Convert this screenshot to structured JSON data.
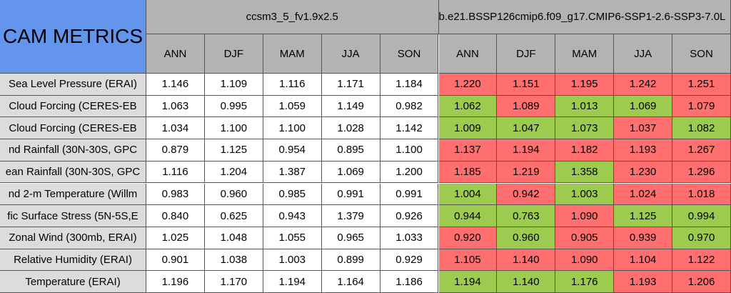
{
  "header": {
    "title": "CAM METRICS",
    "groups": [
      "ccsm3_5_fv1.9x2.5",
      "b.e21.BSSP126cmip6.f09_g17.CMIP6-SSP1-2.6-SSP3-7.0L"
    ],
    "columns": [
      "ANN",
      "DJF",
      "MAM",
      "JJA",
      "SON",
      "ANN",
      "DJF",
      "MAM",
      "JJA",
      "SON"
    ]
  },
  "table": {
    "rows": [
      {
        "label": "Sea Level Pressure (ERAI)",
        "cells": [
          "1.146",
          "1.109",
          "1.116",
          "1.171",
          "1.184",
          "1.220",
          "1.151",
          "1.195",
          "1.242",
          "1.251"
        ],
        "highlight": [
          "#ff6f6f",
          "#ff6f6f",
          "#ff6f6f",
          "#ff6f6f",
          "#ff6f6f"
        ]
      },
      {
        "label": "Cloud Forcing (CERES-EB",
        "cells": [
          "1.063",
          "0.995",
          "1.059",
          "1.149",
          "0.982",
          "1.062",
          "1.089",
          "1.013",
          "1.069",
          "1.079"
        ],
        "highlight": [
          "#9ccb50",
          "#ff6f6f",
          "#9ccb50",
          "#9ccb50",
          "#ff6f6f"
        ]
      },
      {
        "label": "Cloud Forcing (CERES-EB",
        "cells": [
          "1.034",
          "1.100",
          "1.100",
          "1.028",
          "1.142",
          "1.009",
          "1.047",
          "1.073",
          "1.037",
          "1.082"
        ],
        "highlight": [
          "#9ccb50",
          "#9ccb50",
          "#9ccb50",
          "#ff6f6f",
          "#9ccb50"
        ]
      },
      {
        "label": "nd Rainfall (30N-30S, GPC",
        "cells": [
          "0.879",
          "1.125",
          "0.954",
          "0.895",
          "1.100",
          "1.137",
          "1.194",
          "1.182",
          "1.193",
          "1.267"
        ],
        "highlight": [
          "#ff6f6f",
          "#ff6f6f",
          "#ff6f6f",
          "#ff6f6f",
          "#ff6f6f"
        ]
      },
      {
        "label": "ean Rainfall (30N-30S, GPC",
        "cells": [
          "1.116",
          "1.204",
          "1.387",
          "1.069",
          "1.200",
          "1.185",
          "1.219",
          "1.358",
          "1.230",
          "1.296"
        ],
        "highlight": [
          "#ff6f6f",
          "#ff6f6f",
          "#9ccb50",
          "#ff6f6f",
          "#ff6f6f"
        ]
      },
      {
        "label": "nd 2-m Temperature (Willm",
        "cells": [
          "0.983",
          "0.960",
          "0.985",
          "0.991",
          "0.991",
          "1.004",
          "0.942",
          "1.003",
          "1.024",
          "1.018"
        ],
        "highlight": [
          "#9ccb50",
          "#ff6f6f",
          "#9ccb50",
          "#ff6f6f",
          "#ff6f6f"
        ]
      },
      {
        "label": "fic Surface Stress (5N-5S,E",
        "cells": [
          "0.840",
          "0.625",
          "0.943",
          "1.379",
          "0.926",
          "0.944",
          "0.763",
          "1.090",
          "1.125",
          "0.994"
        ],
        "highlight": [
          "#9ccb50",
          "#9ccb50",
          "#ff6f6f",
          "#9ccb50",
          "#9ccb50"
        ]
      },
      {
        "label": "Zonal Wind (300mb, ERAI)",
        "cells": [
          "1.025",
          "1.048",
          "1.055",
          "0.965",
          "1.033",
          "0.920",
          "0.960",
          "0.905",
          "0.939",
          "0.970"
        ],
        "highlight": [
          "#ff6f6f",
          "#9ccb50",
          "#ff6f6f",
          "#ff6f6f",
          "#9ccb50"
        ]
      },
      {
        "label": "Relative Humidity (ERAI)",
        "cells": [
          "0.901",
          "1.038",
          "1.003",
          "0.899",
          "0.929",
          "1.105",
          "1.140",
          "1.090",
          "1.104",
          "1.122"
        ],
        "highlight": [
          "#ff6f6f",
          "#ff6f6f",
          "#ff6f6f",
          "#ff6f6f",
          "#ff6f6f"
        ]
      },
      {
        "label": "Temperature (ERAI)",
        "cells": [
          "1.196",
          "1.170",
          "1.194",
          "1.164",
          "1.186",
          "1.194",
          "1.140",
          "1.176",
          "1.193",
          "1.206"
        ],
        "highlight": [
          "#9ccb50",
          "#9ccb50",
          "#9ccb50",
          "#ff6f6f",
          "#ff6f6f"
        ]
      }
    ]
  }
}
